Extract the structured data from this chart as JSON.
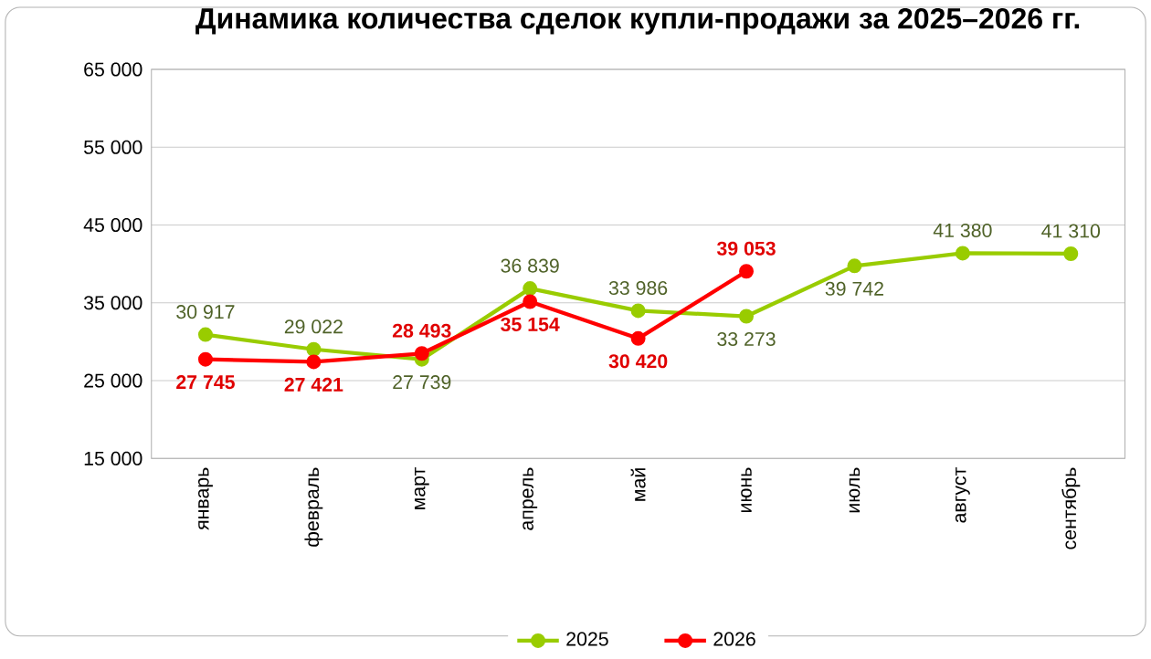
{
  "chart_data": {
    "type": "line",
    "title": "Динамика количества сделок купли-продажи за 2025–2026 гг.",
    "categories": [
      "январь",
      "февраль",
      "март",
      "апрель",
      "май",
      "июнь",
      "июль",
      "август",
      "сентябрь"
    ],
    "series": [
      {
        "name": "2025",
        "color": "#99cc00",
        "values": [
          30917,
          29022,
          27739,
          36839,
          33986,
          33273,
          39742,
          41380,
          41310
        ],
        "value_labels": [
          "30 917",
          "29 022",
          "27 739",
          "36 839",
          "33 986",
          "33 273",
          "39 742",
          "41 380",
          "41 310"
        ]
      },
      {
        "name": "2026",
        "color": "#ff0000",
        "values": [
          27745,
          27421,
          28493,
          35154,
          30420,
          39053,
          null,
          null,
          null
        ],
        "value_labels": [
          "27 745",
          "27 421",
          "28 493",
          "35 154",
          "30 420",
          "39 053",
          null,
          null,
          null
        ]
      }
    ],
    "ylim": [
      15000,
      65000
    ],
    "yticks": [
      {
        "value": 15000,
        "label": "15 000"
      },
      {
        "value": 25000,
        "label": "25 000"
      },
      {
        "value": 35000,
        "label": "35 000"
      },
      {
        "value": 45000,
        "label": "45 000"
      },
      {
        "value": 55000,
        "label": "55 000"
      },
      {
        "value": 65000,
        "label": "65 000"
      }
    ],
    "grid": "y",
    "legend": "bottom",
    "marker": "circle",
    "line_style": "solid"
  }
}
